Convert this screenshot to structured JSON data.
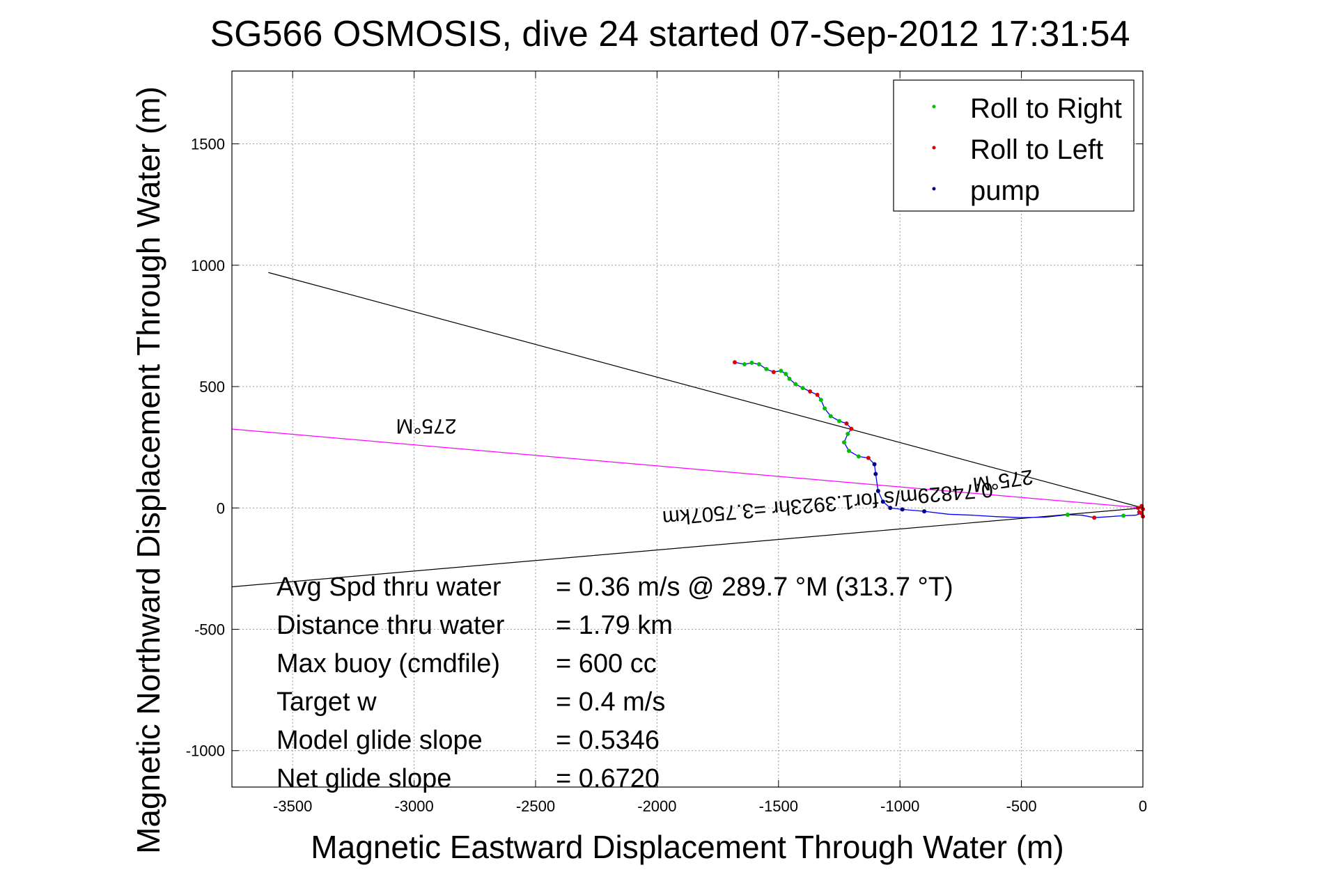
{
  "chart_data": {
    "type": "line",
    "title": "SG566 OSMOSIS, dive 24 started 07-Sep-2012 17:31:54",
    "xlabel": "Magnetic Eastward Displacement Through Water (m)",
    "ylabel": "Magnetic Northward Displacement Through Water (m)",
    "xlim": [
      -3750,
      0
    ],
    "ylim": [
      -1150,
      1800
    ],
    "xticks": [
      -3500,
      -3000,
      -2500,
      -2000,
      -1500,
      -1000,
      -500,
      0
    ],
    "yticks": [
      -1000,
      -500,
      0,
      500,
      1000,
      1500
    ],
    "grid": true,
    "legend_position": "top-right",
    "legend": [
      {
        "label": "Roll to Right",
        "color": "#00c000"
      },
      {
        "label": "Roll to Left",
        "color": "#e00000"
      },
      {
        "label": "pump",
        "color": "#000080"
      }
    ],
    "reference_lines": [
      {
        "name": "upper-bound",
        "color": "#000000",
        "from": [
          -3600,
          970
        ],
        "to": [
          0,
          0
        ]
      },
      {
        "name": "heading-275",
        "color": "#ff00ff",
        "from": [
          -3750,
          325
        ],
        "to": [
          0,
          0
        ]
      },
      {
        "name": "lower-bound",
        "color": "#000000",
        "from": [
          -3750,
          -325
        ],
        "to": [
          0,
          0
        ]
      }
    ],
    "track": {
      "color": "#0000ff",
      "points": [
        [
          -1680,
          600
        ],
        [
          -1640,
          592
        ],
        [
          -1610,
          598
        ],
        [
          -1580,
          592
        ],
        [
          -1550,
          572
        ],
        [
          -1520,
          560
        ],
        [
          -1490,
          565
        ],
        [
          -1470,
          552
        ],
        [
          -1455,
          532
        ],
        [
          -1430,
          510
        ],
        [
          -1400,
          494
        ],
        [
          -1370,
          480
        ],
        [
          -1340,
          466
        ],
        [
          -1325,
          445
        ],
        [
          -1310,
          410
        ],
        [
          -1285,
          378
        ],
        [
          -1250,
          358
        ],
        [
          -1220,
          348
        ],
        [
          -1200,
          326
        ],
        [
          -1215,
          305
        ],
        [
          -1230,
          270
        ],
        [
          -1210,
          235
        ],
        [
          -1170,
          212
        ],
        [
          -1130,
          206
        ],
        [
          -1105,
          180
        ],
        [
          -1100,
          140
        ],
        [
          -1090,
          70
        ],
        [
          -1070,
          26
        ],
        [
          -1040,
          0
        ],
        [
          -990,
          -6
        ],
        [
          -900,
          -14
        ],
        [
          -800,
          -26
        ],
        [
          -700,
          -30
        ],
        [
          -600,
          -36
        ],
        [
          -500,
          -40
        ],
        [
          -400,
          -38
        ],
        [
          -310,
          -28
        ],
        [
          -250,
          -30
        ],
        [
          -200,
          -40
        ],
        [
          -140,
          -36
        ],
        [
          -80,
          -32
        ],
        [
          -30,
          -30
        ],
        [
          -5,
          -22
        ],
        [
          0,
          -5
        ],
        [
          -5,
          8
        ],
        [
          -20,
          0
        ],
        [
          -15,
          -18
        ],
        [
          -3,
          -28
        ],
        [
          0,
          -35
        ]
      ],
      "roll_right": [
        [
          -1640,
          592
        ],
        [
          -1610,
          598
        ],
        [
          -1580,
          592
        ],
        [
          -1550,
          572
        ],
        [
          -1490,
          565
        ],
        [
          -1470,
          552
        ],
        [
          -1455,
          532
        ],
        [
          -1430,
          510
        ],
        [
          -1400,
          494
        ],
        [
          -1325,
          445
        ],
        [
          -1310,
          410
        ],
        [
          -1285,
          378
        ],
        [
          -1250,
          358
        ],
        [
          -1215,
          305
        ],
        [
          -1230,
          270
        ],
        [
          -1210,
          235
        ],
        [
          -1170,
          212
        ],
        [
          -310,
          -28
        ],
        [
          -80,
          -32
        ]
      ],
      "roll_left": [
        [
          -1680,
          600
        ],
        [
          -1520,
          560
        ],
        [
          -1370,
          480
        ],
        [
          -1340,
          466
        ],
        [
          -1220,
          348
        ],
        [
          -1200,
          326
        ],
        [
          -1130,
          206
        ],
        [
          -200,
          -40
        ],
        [
          -5,
          -22
        ],
        [
          0,
          -5
        ],
        [
          -5,
          8
        ],
        [
          -20,
          0
        ],
        [
          -15,
          -18
        ],
        [
          0,
          -35
        ]
      ],
      "pump": [
        [
          -1105,
          180
        ],
        [
          -1100,
          140
        ],
        [
          -1090,
          70
        ],
        [
          -1070,
          26
        ],
        [
          -1040,
          0
        ],
        [
          -990,
          -6
        ],
        [
          -900,
          -14
        ]
      ]
    },
    "annotations": [
      {
        "text": "275°M",
        "rotation": 180,
        "at": [
          -2950,
          365
        ]
      },
      {
        "text": "275°M",
        "rotation": 172,
        "at": [
          -580,
          140
        ]
      },
      {
        "text": "0.74829m/s for1.3923hr =3.7507km",
        "rotation": 175,
        "at": [
          -1300,
          45
        ]
      }
    ],
    "stats": [
      {
        "label": "Avg Spd thru water",
        "value": "=  0.36 m/s @ 289.7 °M (313.7 °T)"
      },
      {
        "label": "Distance thru water",
        "value": "=  1.79 km"
      },
      {
        "label": "Max buoy (cmdfile)",
        "value": "= 600 cc"
      },
      {
        "label": "Target w",
        "value": "= 0.4 m/s"
      },
      {
        "label": "Model glide slope",
        "value": "= 0.5346"
      },
      {
        "label": "Net glide slope",
        "value": "= 0.6720"
      }
    ]
  }
}
